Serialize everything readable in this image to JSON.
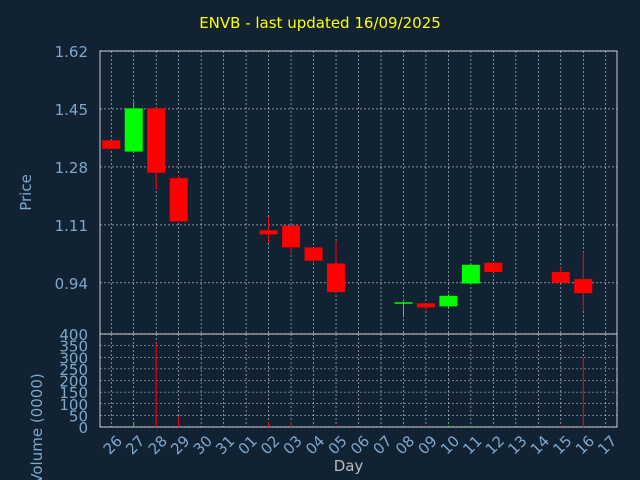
{
  "chart_data": {
    "title": "ENVB - last updated 16/09/2025",
    "colors": {
      "background": "#112233",
      "up": "#00FF00",
      "down": "#FF0000",
      "grid": "#FFFFFF",
      "axis_text": "#7FA8CC",
      "title": "#FFFF00"
    },
    "price_panel": {
      "type": "candlestick",
      "ylabel": "Price",
      "ylim": [
        0.79,
        1.62
      ],
      "yticks": [
        "1.62",
        "1.45",
        "1.28",
        "1.11",
        "0.94"
      ],
      "ytick_values": [
        1.62,
        1.45,
        1.28,
        1.11,
        0.94
      ],
      "grid": true
    },
    "volume_panel": {
      "type": "bar",
      "ylabel": "Volume (0000)",
      "ylim": [
        0,
        400
      ],
      "yticks": [
        "400",
        "350",
        "300",
        "250",
        "200",
        "150",
        "100",
        "50",
        "0"
      ],
      "ytick_values": [
        400,
        350,
        300,
        250,
        200,
        150,
        100,
        50,
        0
      ],
      "grid": true
    },
    "xlabel": "Day",
    "categories": [
      "26",
      "27",
      "28",
      "29",
      "30",
      "31",
      "01",
      "02",
      "03",
      "04",
      "05",
      "06",
      "07",
      "08",
      "09",
      "10",
      "11",
      "12",
      "13",
      "14",
      "15",
      "16",
      "17"
    ],
    "candles": [
      {
        "day": "26",
        "open": 1.358,
        "high": 1.358,
        "low": 1.333,
        "close": 1.333,
        "volume": 0
      },
      {
        "day": "27",
        "open": 1.325,
        "high": 1.472,
        "low": 1.325,
        "close": 1.452,
        "volume": 20
      },
      {
        "day": "28",
        "open": 1.452,
        "high": 1.452,
        "low": 1.213,
        "close": 1.263,
        "volume": 360
      },
      {
        "day": "29",
        "open": 1.247,
        "high": 1.257,
        "low": 1.12,
        "close": 1.12,
        "volume": 45
      },
      {
        "day": "02",
        "open": 1.094,
        "high": 1.133,
        "low": 1.057,
        "close": 1.082,
        "volume": 20
      },
      {
        "day": "03",
        "open": 1.108,
        "high": 1.108,
        "low": 1.024,
        "close": 1.044,
        "volume": 20
      },
      {
        "day": "04",
        "open": 1.044,
        "high": 1.044,
        "low": 1.0,
        "close": 1.005,
        "volume": 10
      },
      {
        "day": "05",
        "open": 0.997,
        "high": 1.063,
        "low": 0.91,
        "close": 0.913,
        "volume": 5
      },
      {
        "day": "08",
        "open": 0.883,
        "high": 0.885,
        "low": 0.839,
        "close": 0.883,
        "volume": 5
      },
      {
        "day": "09",
        "open": 0.88,
        "high": 0.88,
        "low": 0.861,
        "close": 0.868,
        "volume": 5
      },
      {
        "day": "10",
        "open": 0.871,
        "high": 0.907,
        "low": 0.867,
        "close": 0.902,
        "volume": 5
      },
      {
        "day": "11",
        "open": 0.938,
        "high": 0.998,
        "low": 0.938,
        "close": 0.993,
        "volume": 5
      },
      {
        "day": "12",
        "open": 0.999,
        "high": 0.999,
        "low": 0.966,
        "close": 0.972,
        "volume": 5
      },
      {
        "day": "15",
        "open": 0.972,
        "high": 0.985,
        "low": 0.94,
        "close": 0.94,
        "volume": 5
      },
      {
        "day": "16",
        "open": 0.951,
        "high": 1.03,
        "low": 0.857,
        "close": 0.91,
        "volume": 300
      }
    ]
  }
}
